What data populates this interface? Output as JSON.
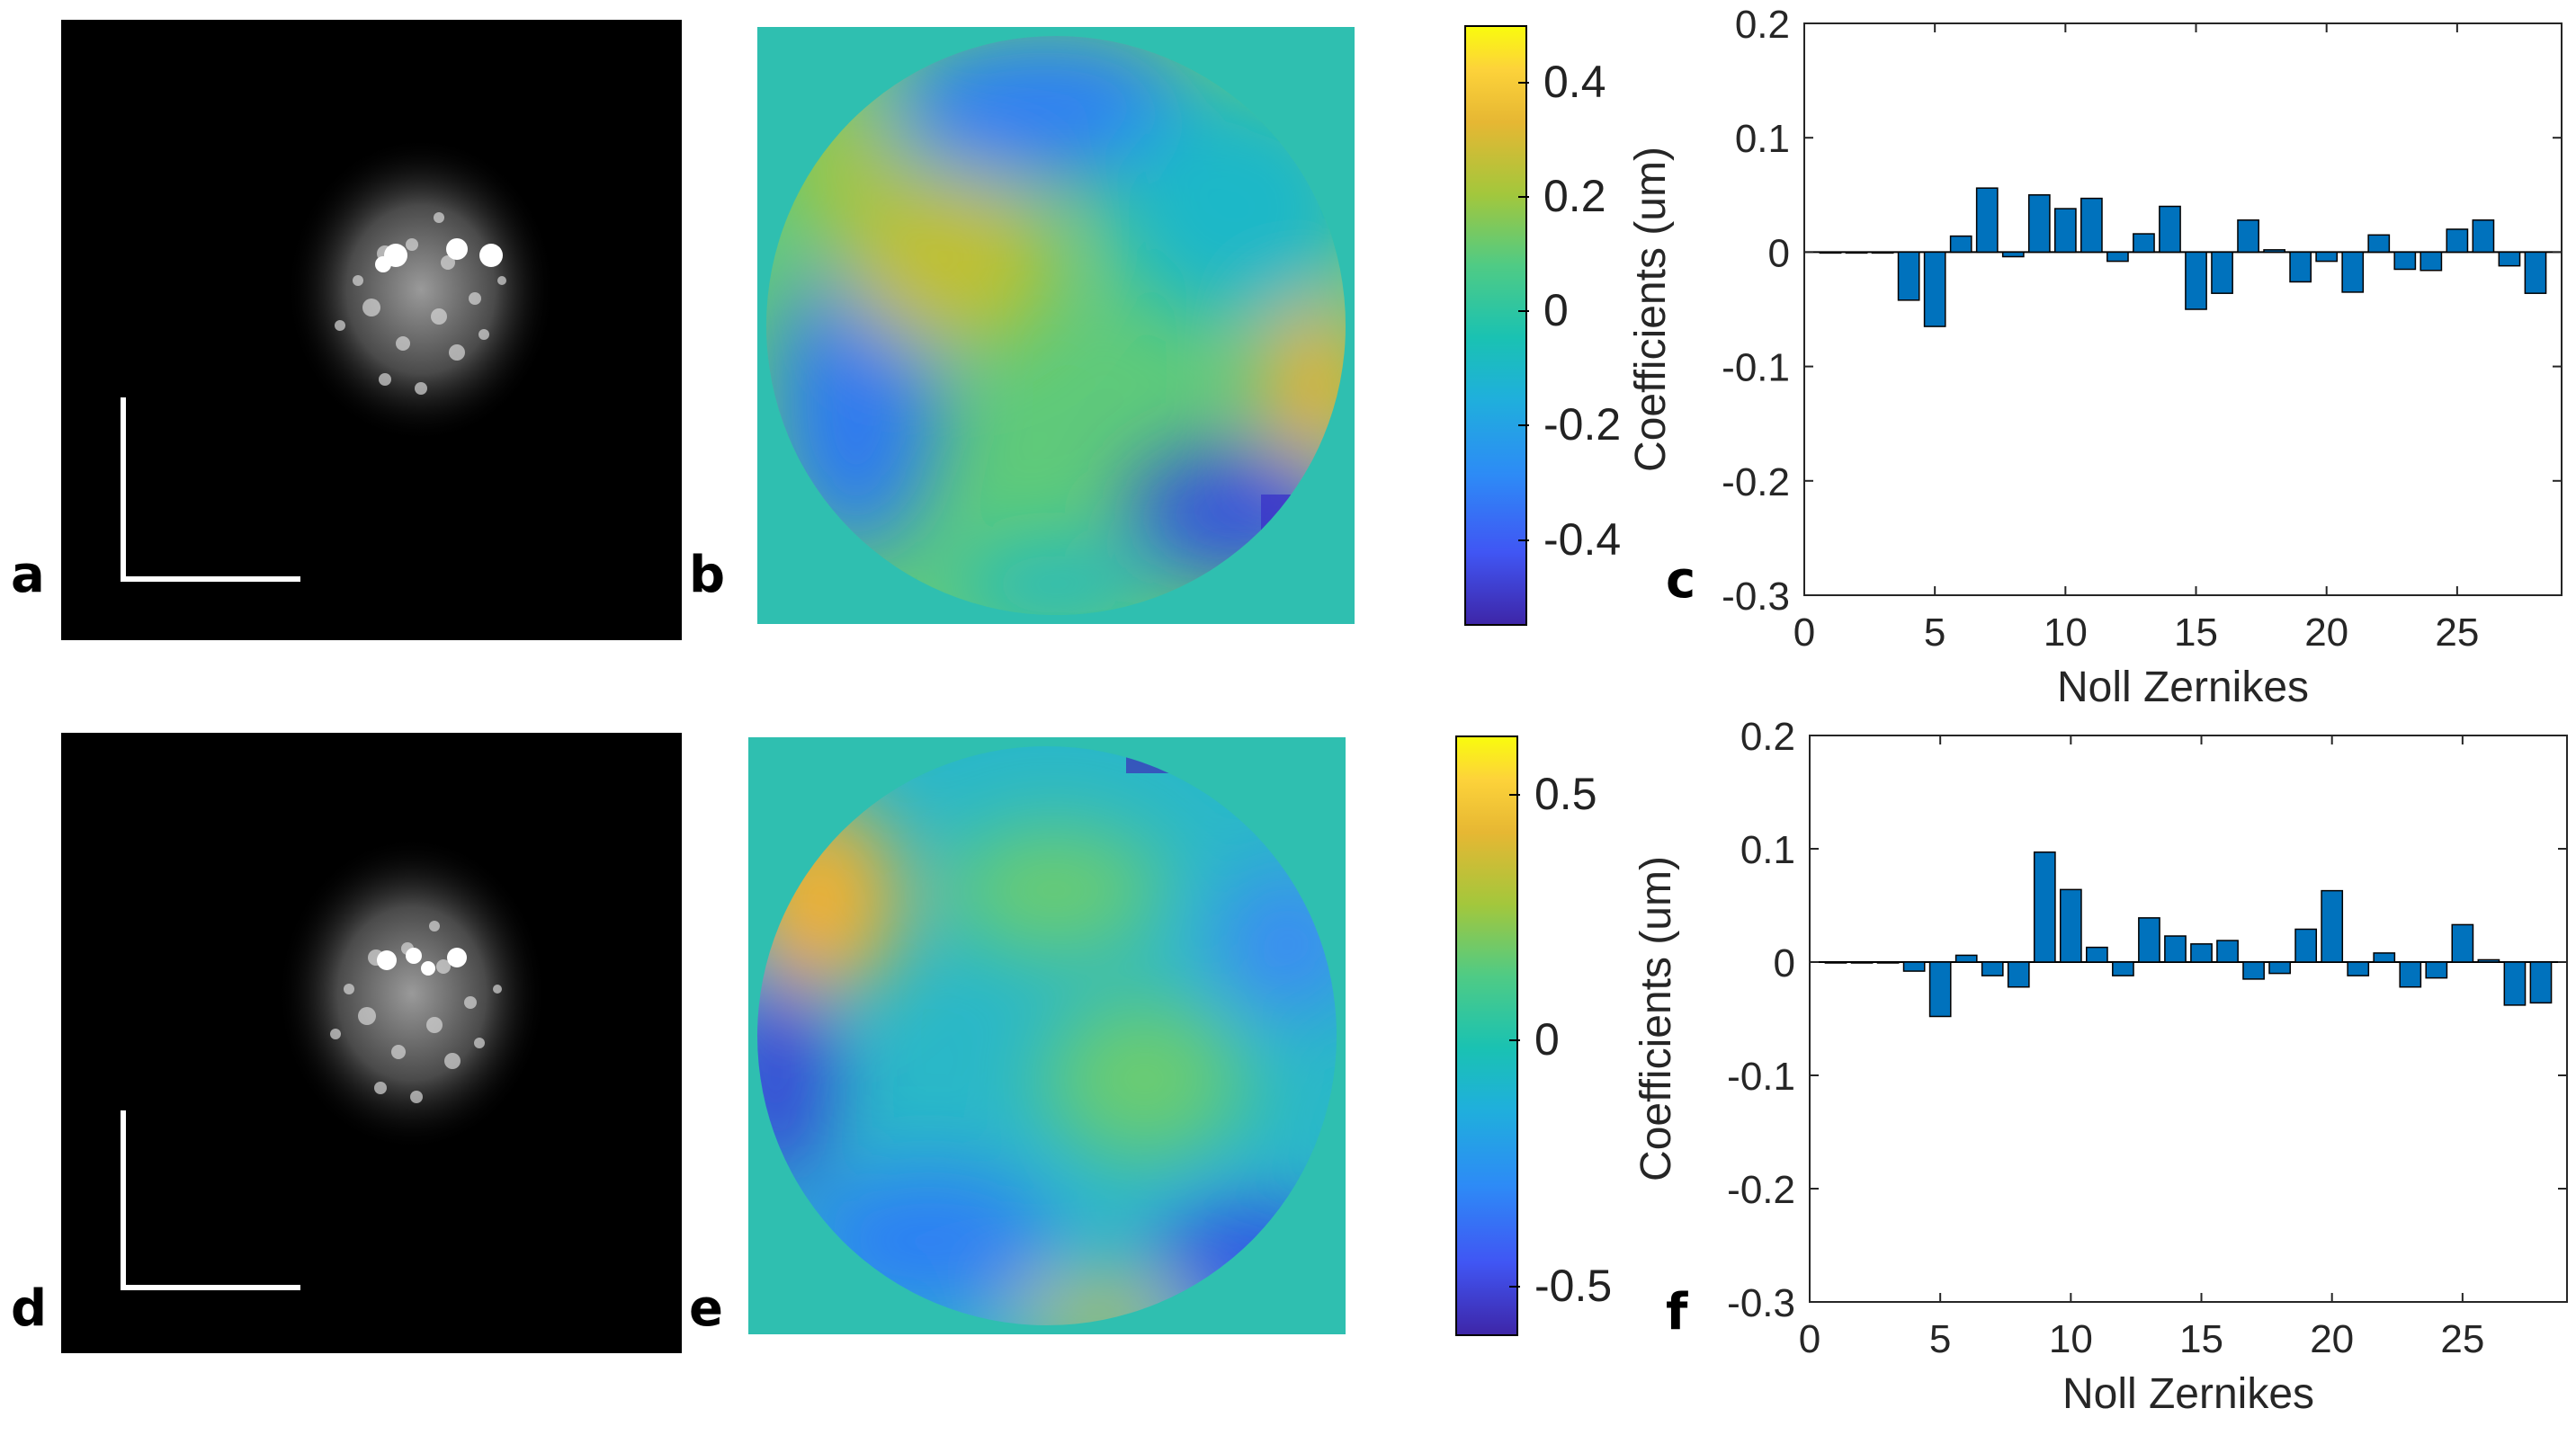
{
  "panels": {
    "a": "a",
    "b": "b",
    "c": "c",
    "d": "d",
    "e": "e",
    "f": "f"
  },
  "colorbar_top": {
    "range": [
      -0.55,
      0.5
    ],
    "ticks": [
      {
        "value": 0.4,
        "label": "0.4"
      },
      {
        "value": 0.2,
        "label": "0.2"
      },
      {
        "value": 0,
        "label": "0"
      },
      {
        "value": -0.2,
        "label": "-0.2"
      },
      {
        "value": -0.4,
        "label": "-0.4"
      }
    ]
  },
  "colorbar_bottom": {
    "range": [
      -0.6,
      0.62
    ],
    "ticks": [
      {
        "value": 0.5,
        "label": "0.5"
      },
      {
        "value": 0,
        "label": "0"
      },
      {
        "value": -0.5,
        "label": "-0.5"
      }
    ]
  },
  "colors": {
    "bar": "#0072BD",
    "cmap": [
      "#3e26a8",
      "#4056f4",
      "#2d8bf6",
      "#1fb0db",
      "#1ac2b2",
      "#4fcb85",
      "#a3c73c",
      "#e6b733",
      "#fdd33a",
      "#f9fb0e"
    ]
  },
  "chart_data": [
    {
      "id": "c",
      "type": "bar",
      "xlabel": "Noll Zernikes",
      "ylabel": "Coefficients (um)",
      "xlim": [
        0,
        29
      ],
      "ylim": [
        -0.3,
        0.2
      ],
      "xticks": [
        0,
        5,
        10,
        15,
        20,
        25
      ],
      "yticks": [
        0.2,
        0.1,
        0,
        -0.1,
        -0.2,
        -0.3
      ],
      "ytick_labels": [
        "0.2",
        "0.1",
        "0",
        "-0.1",
        "-0.2",
        "-0.3"
      ],
      "x": [
        1,
        2,
        3,
        4,
        5,
        6,
        7,
        8,
        9,
        10,
        11,
        12,
        13,
        14,
        15,
        16,
        17,
        18,
        19,
        20,
        21,
        22,
        23,
        24,
        25,
        26,
        27,
        28
      ],
      "values": [
        0,
        0,
        0,
        -0.042,
        -0.065,
        0.014,
        0.056,
        -0.004,
        0.05,
        0.038,
        0.047,
        -0.008,
        0.016,
        0.04,
        -0.05,
        -0.036,
        0.028,
        0.002,
        -0.026,
        -0.008,
        -0.035,
        0.015,
        -0.015,
        -0.016,
        0.02,
        0.028,
        -0.012,
        -0.036
      ]
    },
    {
      "id": "f",
      "type": "bar",
      "xlabel": "Noll Zernikes",
      "ylabel": "Coefficients (um)",
      "xlim": [
        0,
        29
      ],
      "ylim": [
        -0.3,
        0.2
      ],
      "xticks": [
        0,
        5,
        10,
        15,
        20,
        25
      ],
      "yticks": [
        0.2,
        0.1,
        0,
        -0.1,
        -0.2,
        -0.3
      ],
      "ytick_labels": [
        "0.2",
        "0.1",
        "0",
        "-0.1",
        "-0.2",
        "-0.3"
      ],
      "x": [
        1,
        2,
        3,
        4,
        5,
        6,
        7,
        8,
        9,
        10,
        11,
        12,
        13,
        14,
        15,
        16,
        17,
        18,
        19,
        20,
        21,
        22,
        23,
        24,
        25,
        26,
        27,
        28
      ],
      "values": [
        0,
        0,
        0,
        -0.008,
        -0.048,
        0.006,
        -0.012,
        -0.022,
        0.097,
        0.064,
        0.013,
        -0.012,
        0.039,
        0.023,
        0.016,
        0.019,
        -0.015,
        -0.01,
        0.029,
        0.063,
        -0.012,
        0.008,
        -0.022,
        -0.014,
        0.033,
        0.002,
        -0.038,
        -0.036
      ]
    }
  ]
}
